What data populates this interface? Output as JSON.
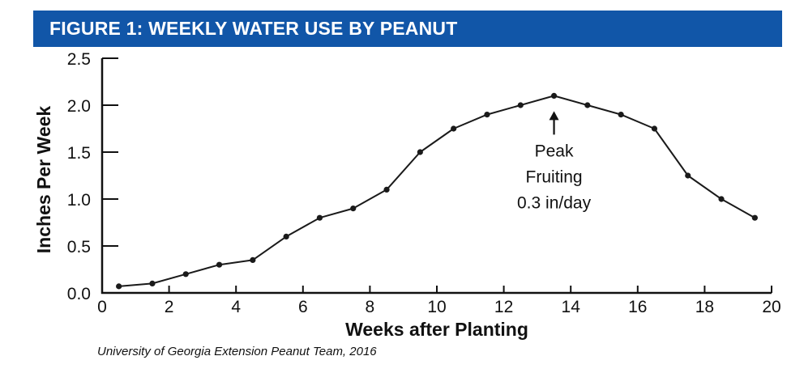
{
  "header": {
    "title": "FIGURE 1: WEEKLY WATER USE BY PEANUT"
  },
  "colors": {
    "banner": "#1156a8",
    "line": "#1a1a1a"
  },
  "source": "University of Georgia Extension Peanut Team, 2016",
  "chart_data": {
    "type": "line",
    "title": "FIGURE 1: WEEKLY WATER USE BY PEANUT",
    "xlabel": "Weeks after Planting",
    "ylabel": "Inches Per Week",
    "xlim": [
      0,
      20
    ],
    "ylim": [
      0,
      2.5
    ],
    "x_ticks": [
      "0",
      "2",
      "4",
      "6",
      "8",
      "10",
      "12",
      "14",
      "16",
      "18",
      "20"
    ],
    "y_ticks": [
      "0.0",
      "0.5",
      "1.0",
      "1.5",
      "2.0",
      "2.5"
    ],
    "grid": false,
    "legend": "none",
    "series": [
      {
        "x": [
          0.5,
          1.5,
          2.5,
          3.5,
          4.5,
          5.5,
          6.5,
          7.5,
          8.5,
          9.5,
          10.5,
          11.5,
          12.5,
          13.5,
          14.5,
          15.5,
          16.5,
          17.5,
          18.5,
          19.5
        ],
        "y": [
          0.07,
          0.1,
          0.2,
          0.3,
          0.35,
          0.6,
          0.8,
          0.9,
          1.1,
          1.5,
          1.75,
          1.9,
          2.0,
          2.1,
          2.0,
          1.9,
          1.75,
          1.25,
          1.0,
          0.8
        ]
      }
    ],
    "annotations": [
      {
        "x": 13.5,
        "y": 2.1,
        "lines": [
          "Peak",
          "Fruiting",
          "0.3 in/day"
        ]
      }
    ]
  }
}
